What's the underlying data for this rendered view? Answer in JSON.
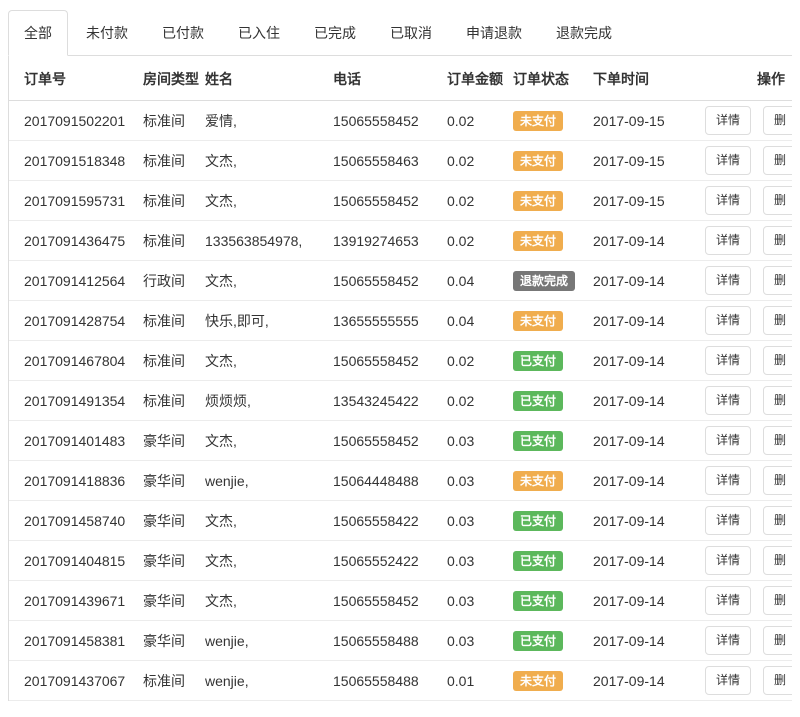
{
  "tabs": [
    {
      "key": "all",
      "label": "全部",
      "active": true
    },
    {
      "key": "unpaid",
      "label": "未付款",
      "active": false
    },
    {
      "key": "paid",
      "label": "已付款",
      "active": false
    },
    {
      "key": "checked-in",
      "label": "已入住",
      "active": false
    },
    {
      "key": "completed",
      "label": "已完成",
      "active": false
    },
    {
      "key": "cancelled",
      "label": "已取消",
      "active": false
    },
    {
      "key": "refund-requested",
      "label": "申请退款",
      "active": false
    },
    {
      "key": "refund-completed",
      "label": "退款完成",
      "active": false
    }
  ],
  "table": {
    "headers": [
      "订单号",
      "房间类型",
      "姓名",
      "电话",
      "订单金额",
      "订单状态",
      "下单时间",
      "操作"
    ],
    "actions": {
      "detail_label": "详情",
      "delete_label": "删"
    },
    "status_colors": {
      "未支付": "#f0ad4e",
      "已支付": "#5cb85c",
      "退款完成": "#777777"
    },
    "rows": [
      {
        "order_no": "2017091502201",
        "room_type": "标准间",
        "name": "爱情,",
        "phone": "15065558452",
        "amount": "0.02",
        "status": "未支付",
        "date": "2017-09-15"
      },
      {
        "order_no": "2017091518348",
        "room_type": "标准间",
        "name": "文杰,",
        "phone": "15065558463",
        "amount": "0.02",
        "status": "未支付",
        "date": "2017-09-15"
      },
      {
        "order_no": "2017091595731",
        "room_type": "标准间",
        "name": "文杰,",
        "phone": "15065558452",
        "amount": "0.02",
        "status": "未支付",
        "date": "2017-09-15"
      },
      {
        "order_no": "2017091436475",
        "room_type": "标准间",
        "name": "133563854978,",
        "phone": "13919274653",
        "amount": "0.02",
        "status": "未支付",
        "date": "2017-09-14"
      },
      {
        "order_no": "2017091412564",
        "room_type": "行政间",
        "name": "文杰,",
        "phone": "15065558452",
        "amount": "0.04",
        "status": "退款完成",
        "date": "2017-09-14"
      },
      {
        "order_no": "2017091428754",
        "room_type": "标准间",
        "name": "快乐,即可,",
        "phone": "13655555555",
        "amount": "0.04",
        "status": "未支付",
        "date": "2017-09-14"
      },
      {
        "order_no": "2017091467804",
        "room_type": "标准间",
        "name": "文杰,",
        "phone": "15065558452",
        "amount": "0.02",
        "status": "已支付",
        "date": "2017-09-14"
      },
      {
        "order_no": "2017091491354",
        "room_type": "标准间",
        "name": "烦烦烦,",
        "phone": "13543245422",
        "amount": "0.02",
        "status": "已支付",
        "date": "2017-09-14"
      },
      {
        "order_no": "2017091401483",
        "room_type": "豪华间",
        "name": "文杰,",
        "phone": "15065558452",
        "amount": "0.03",
        "status": "已支付",
        "date": "2017-09-14"
      },
      {
        "order_no": "2017091418836",
        "room_type": "豪华间",
        "name": "wenjie,",
        "phone": "15064448488",
        "amount": "0.03",
        "status": "未支付",
        "date": "2017-09-14"
      },
      {
        "order_no": "2017091458740",
        "room_type": "豪华间",
        "name": "文杰,",
        "phone": "15065558422",
        "amount": "0.03",
        "status": "已支付",
        "date": "2017-09-14"
      },
      {
        "order_no": "2017091404815",
        "room_type": "豪华间",
        "name": "文杰,",
        "phone": "15065552422",
        "amount": "0.03",
        "status": "已支付",
        "date": "2017-09-14"
      },
      {
        "order_no": "2017091439671",
        "room_type": "豪华间",
        "name": "文杰,",
        "phone": "15065558452",
        "amount": "0.03",
        "status": "已支付",
        "date": "2017-09-14"
      },
      {
        "order_no": "2017091458381",
        "room_type": "豪华间",
        "name": "wenjie,",
        "phone": "15065558488",
        "amount": "0.03",
        "status": "已支付",
        "date": "2017-09-14"
      },
      {
        "order_no": "2017091437067",
        "room_type": "标准间",
        "name": "wenjie,",
        "phone": "15065558488",
        "amount": "0.01",
        "status": "未支付",
        "date": "2017-09-14"
      }
    ]
  }
}
